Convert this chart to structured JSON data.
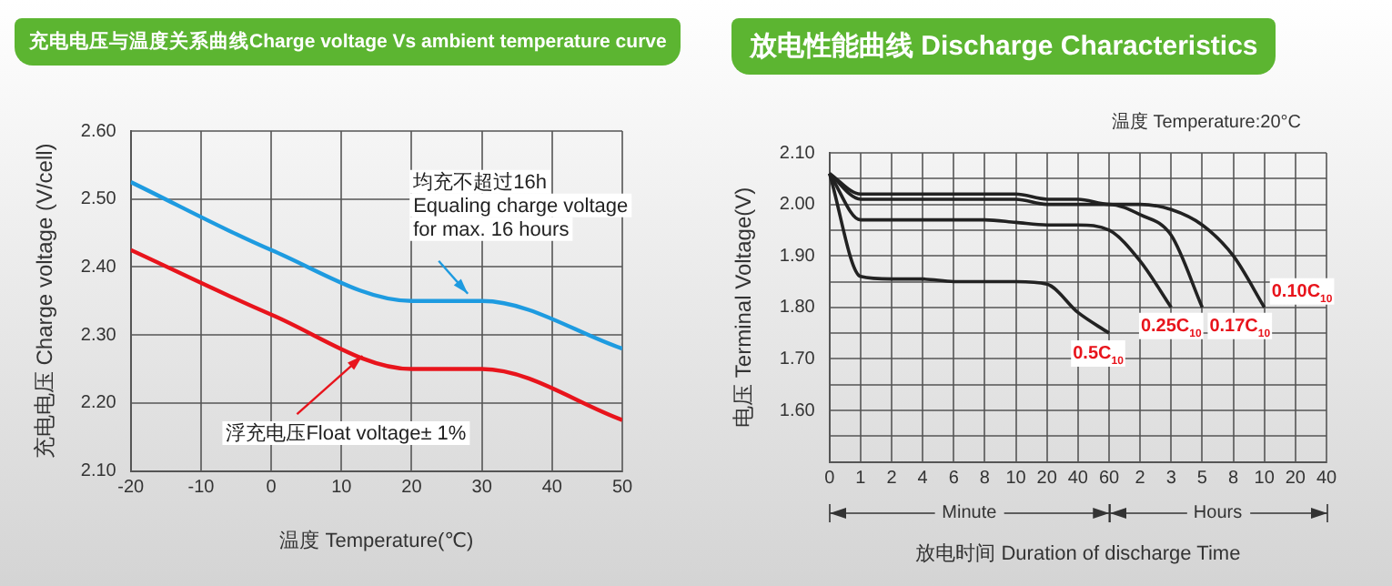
{
  "chart_data": [
    {
      "type": "line",
      "title": "充电电压与温度关系曲线Charge voltage Vs ambient temperature curve",
      "xlabel": "温度 Temperature(℃)",
      "ylabel": "充电电压 Charge voltage (V/cell)",
      "x": [
        -20,
        0,
        20,
        30,
        50
      ],
      "series": [
        {
          "color": "#1e9be0",
          "values": [
            2.525,
            2.425,
            2.35,
            2.35,
            2.28
          ]
        },
        {
          "color": "#e8141c",
          "values": [
            2.425,
            2.33,
            2.25,
            2.25,
            2.175
          ]
        }
      ],
      "xlim": [
        -20,
        50
      ],
      "xticks": [
        -20,
        -10,
        0,
        10,
        20,
        30,
        40,
        50
      ],
      "ylim": [
        2.1,
        2.6
      ],
      "yticks": [
        {
          "value": 2.1,
          "label": "2.10"
        },
        {
          "value": 2.2,
          "label": "2.20"
        },
        {
          "value": 2.3,
          "label": "2.30"
        },
        {
          "value": 2.4,
          "label": "2.40"
        },
        {
          "value": 2.5,
          "label": "2.50"
        },
        {
          "value": 2.6,
          "label": "2.60"
        }
      ],
      "grid": true,
      "annotations": [
        {
          "text": "均充不超过16h\nEqualing charge voltage\nfor max. 16 hours",
          "x": 28,
          "y": 2.35
        },
        {
          "text": "浮充电压Float voltage± 1%",
          "x": 13,
          "y": 2.28
        }
      ]
    },
    {
      "type": "line",
      "title": "放电性能曲线 Discharge Characteristics",
      "subtitle": "温度 Temperature:20°C",
      "xlabel": "放电时间 Duration of discharge Time",
      "ylabel": "电压 Terminal Voltage(V)",
      "categories": [
        "0",
        "1",
        "2",
        "4",
        "6",
        "8",
        "10",
        "20",
        "40",
        "60",
        "2",
        "3",
        "5",
        "8",
        "10",
        "20",
        "40"
      ],
      "series": [
        {
          "name": "0.10C$_{10}$",
          "color": "#222222",
          "values": [
            2.06,
            2.02,
            2.02,
            2.02,
            2.02,
            2.02,
            2.02,
            2.01,
            2.01,
            2.0,
            2.0,
            1.99,
            1.96,
            1.9,
            1.8,
            null,
            null
          ]
        },
        {
          "name": "0.17C$_{10}$",
          "color": "#222222",
          "values": [
            2.06,
            2.01,
            2.01,
            2.01,
            2.01,
            2.01,
            2.01,
            2.0,
            2.0,
            2.0,
            1.98,
            1.94,
            1.8,
            null,
            null,
            null,
            null
          ]
        },
        {
          "name": "0.25C$_{10}$",
          "color": "#222222",
          "values": [
            2.06,
            1.97,
            1.97,
            1.97,
            1.97,
            1.97,
            1.965,
            1.96,
            1.96,
            1.95,
            1.89,
            1.8,
            null,
            null,
            null,
            null,
            null
          ]
        },
        {
          "name": "0.5C$_{10}$",
          "color": "#222222",
          "values": [
            2.06,
            1.86,
            1.855,
            1.855,
            1.85,
            1.85,
            1.85,
            1.845,
            1.79,
            1.75,
            null,
            null,
            null,
            null,
            null,
            null,
            null
          ]
        }
      ],
      "ylim": [
        1.5,
        2.1
      ],
      "yticks": [
        {
          "value": 1.5,
          "label": null
        },
        {
          "value": 1.55,
          "label": null
        },
        {
          "value": 1.6,
          "label": "1.60"
        },
        {
          "value": 1.65,
          "label": null
        },
        {
          "value": 1.7,
          "label": "1.70"
        },
        {
          "value": 1.75,
          "label": null
        },
        {
          "value": 1.8,
          "label": "1.80"
        },
        {
          "value": 1.85,
          "label": null
        },
        {
          "value": 1.9,
          "label": "1.90"
        },
        {
          "value": 1.95,
          "label": null
        },
        {
          "value": 2.0,
          "label": "2.00"
        },
        {
          "value": 2.05,
          "label": null
        },
        {
          "value": 2.1,
          "label": "2.10"
        }
      ],
      "grid": true,
      "annotations": [
        "Minute",
        "Hours"
      ]
    }
  ]
}
